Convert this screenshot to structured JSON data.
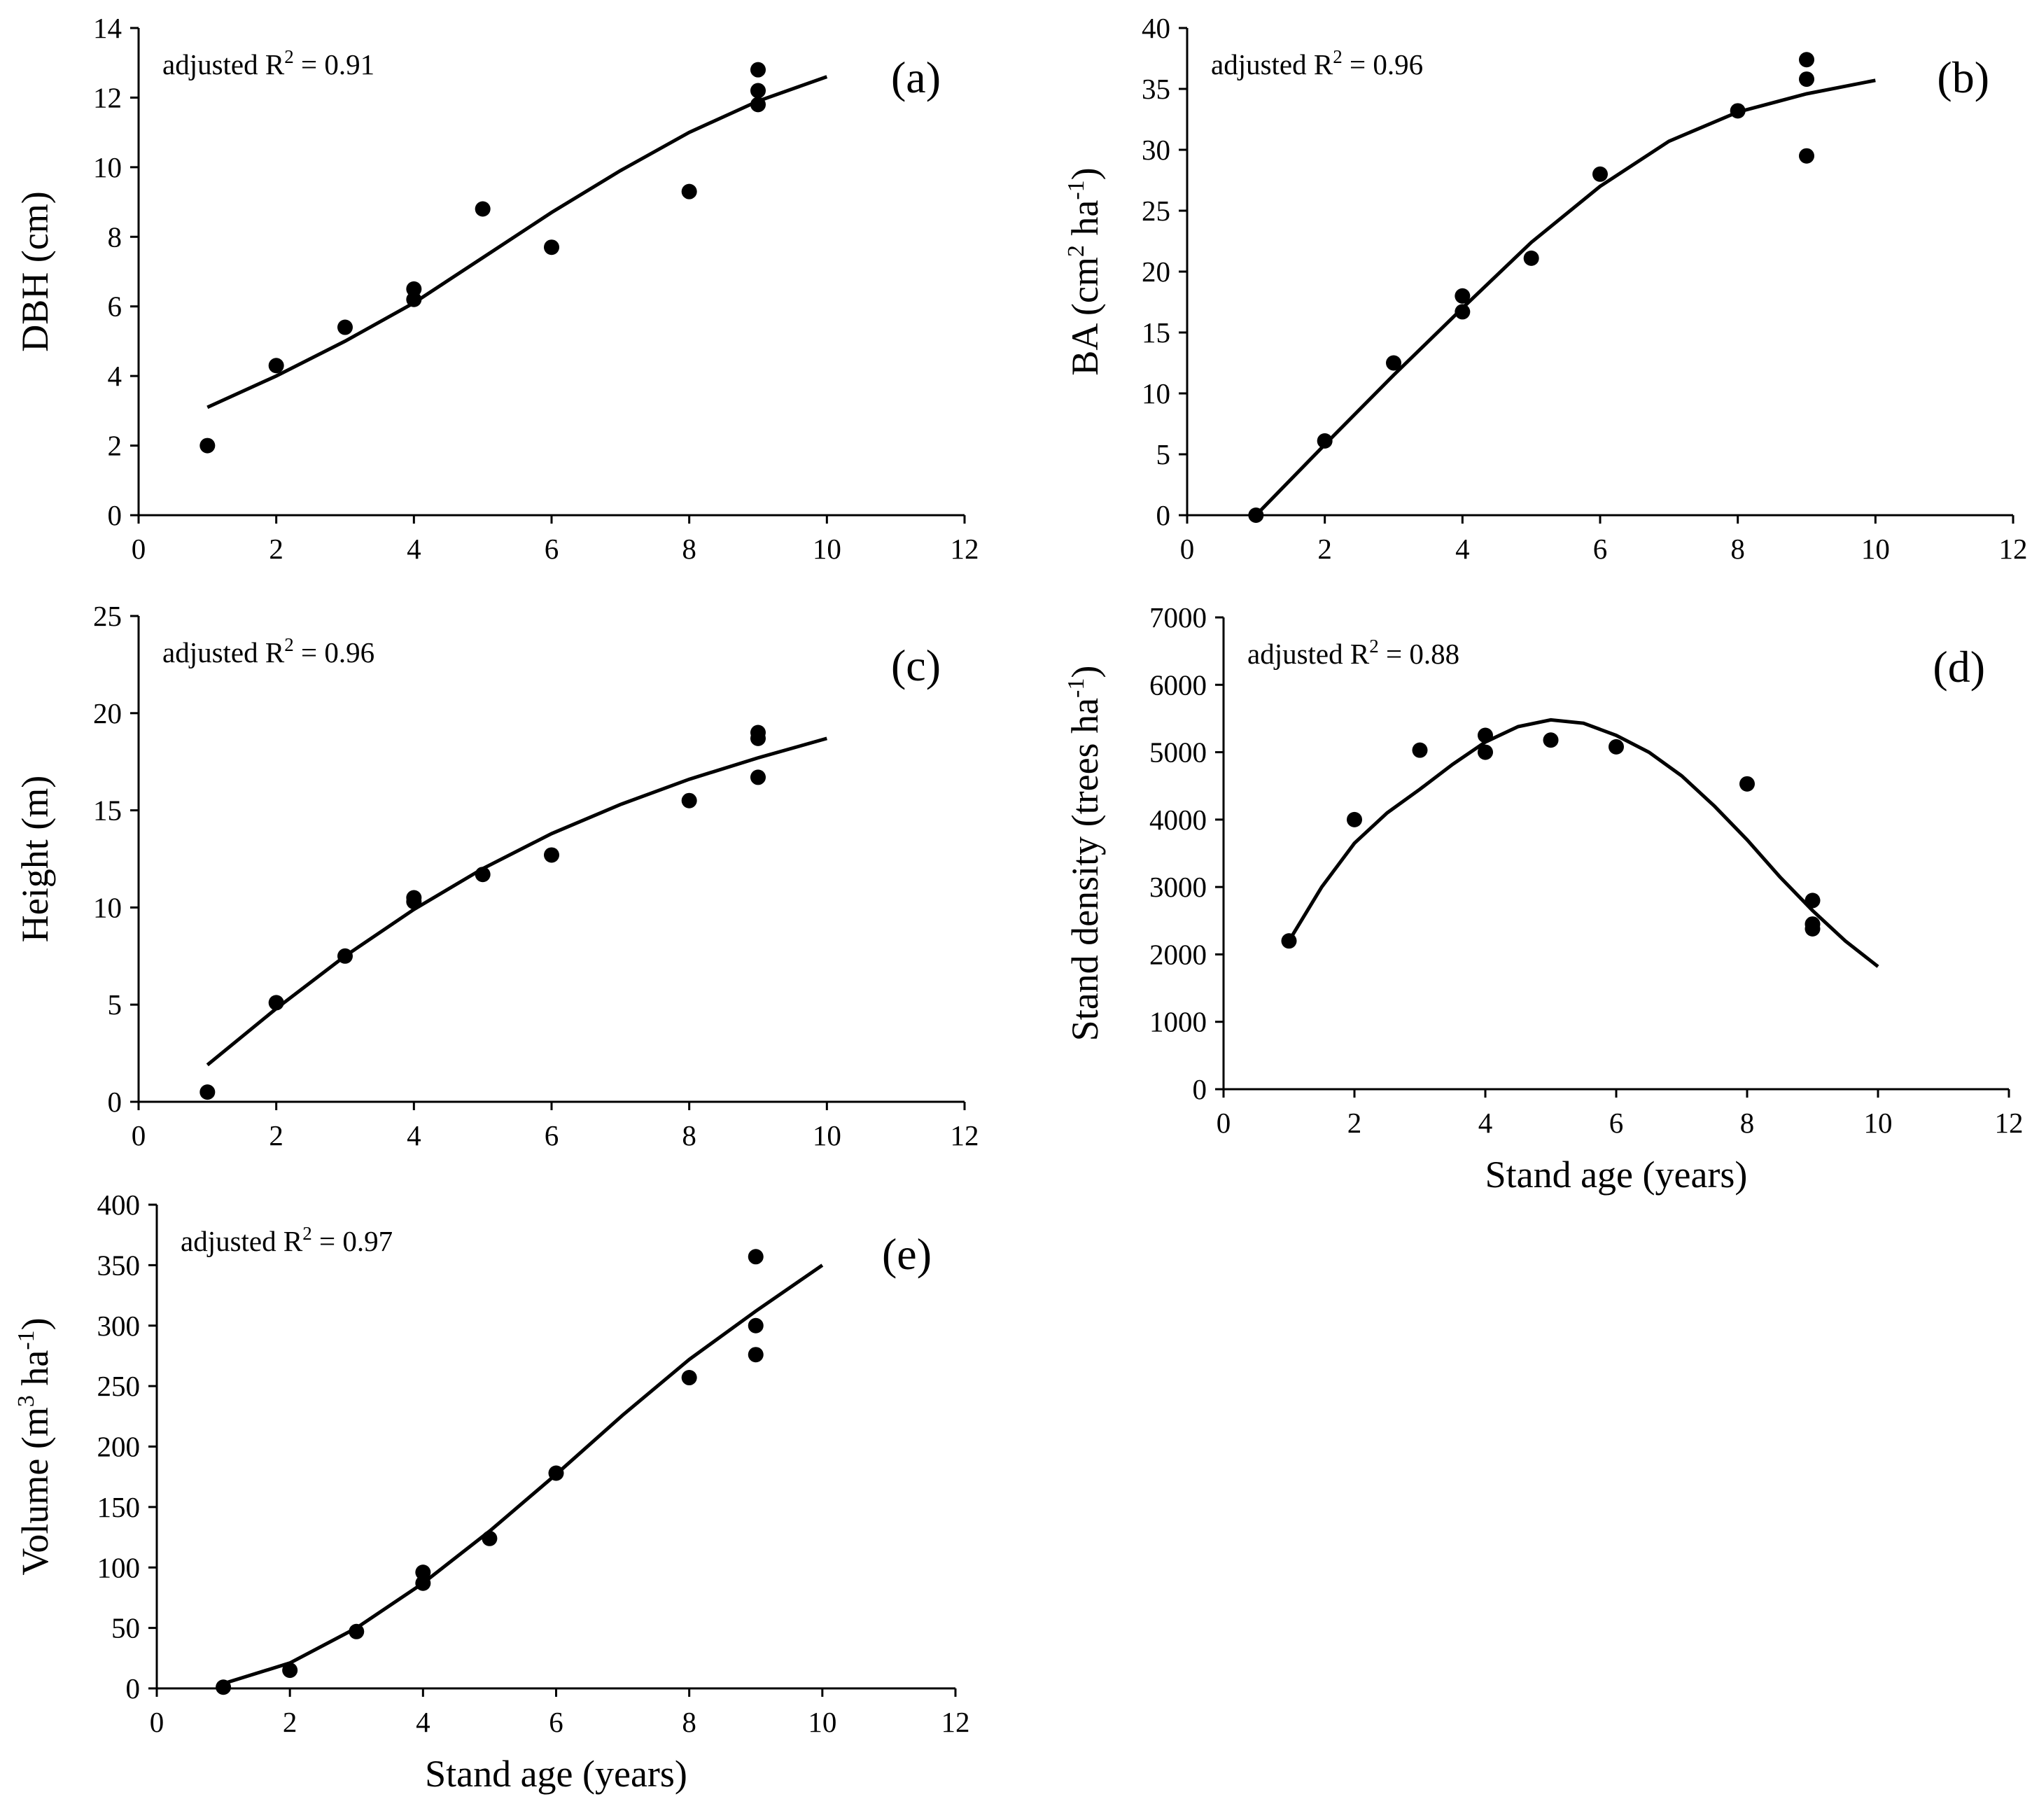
{
  "figure": {
    "x_axis_title": "Stand age (years)"
  },
  "chart_data": [
    {
      "type": "scatter",
      "panel": "(a)",
      "ylabel": {
        "main": "DBH (cm)"
      },
      "xlabel": "",
      "annotation": {
        "prefix": "adjusted R",
        "sup": "2",
        "suffix": " = 0.91"
      },
      "xlim": [
        0,
        12
      ],
      "ylim": [
        0,
        14
      ],
      "xticks": [
        0,
        2,
        4,
        6,
        8,
        10,
        12
      ],
      "yticks": [
        0,
        2,
        4,
        6,
        8,
        10,
        12,
        14
      ],
      "points": [
        [
          1,
          2.0
        ],
        [
          2,
          4.3
        ],
        [
          3,
          5.4
        ],
        [
          4,
          6.2
        ],
        [
          4,
          6.5
        ],
        [
          5,
          8.8
        ],
        [
          6,
          7.7
        ],
        [
          8,
          9.3
        ],
        [
          9,
          11.8
        ],
        [
          9,
          12.2
        ],
        [
          9,
          12.8
        ]
      ],
      "fit": {
        "x": [
          1,
          2,
          3,
          4,
          5,
          6,
          7,
          8,
          9,
          10
        ],
        "y": [
          3.1,
          4.0,
          5.0,
          6.1,
          7.4,
          8.7,
          9.9,
          11.0,
          11.9,
          12.6
        ]
      }
    },
    {
      "type": "scatter",
      "panel": "(b)",
      "ylabel": {
        "main": "BA (cm",
        "sup1": "2",
        "mid": " ha",
        "sup2": "-1",
        "end": ")"
      },
      "xlabel": "",
      "annotation": {
        "prefix": "adjusted R",
        "sup": "2",
        "suffix": " = 0.96"
      },
      "xlim": [
        0,
        12
      ],
      "ylim": [
        0,
        40
      ],
      "xticks": [
        0,
        2,
        4,
        6,
        8,
        10,
        12
      ],
      "yticks": [
        0,
        5,
        10,
        15,
        20,
        25,
        30,
        35,
        40
      ],
      "points": [
        [
          1,
          0.0
        ],
        [
          2,
          6.1
        ],
        [
          3,
          12.5
        ],
        [
          4,
          16.7
        ],
        [
          4,
          18.0
        ],
        [
          5,
          21.1
        ],
        [
          6,
          28.0
        ],
        [
          8,
          33.2
        ],
        [
          9,
          29.5
        ],
        [
          9,
          35.8
        ],
        [
          9,
          37.4
        ]
      ],
      "fit": {
        "x": [
          1,
          2,
          3,
          4,
          5,
          6,
          7,
          8,
          9,
          10
        ],
        "y": [
          0.0,
          5.8,
          11.5,
          17.0,
          22.4,
          27.0,
          30.7,
          33.1,
          34.6,
          35.7
        ]
      }
    },
    {
      "type": "scatter",
      "panel": "(c)",
      "ylabel": {
        "main": "Height (m)"
      },
      "xlabel": "",
      "annotation": {
        "prefix": "adjusted R",
        "sup": "2",
        "suffix": " = 0.96"
      },
      "xlim": [
        0,
        12
      ],
      "ylim": [
        0,
        25
      ],
      "xticks": [
        0,
        2,
        4,
        6,
        8,
        10,
        12
      ],
      "yticks": [
        0,
        5,
        10,
        15,
        20,
        25
      ],
      "points": [
        [
          1,
          0.5
        ],
        [
          2,
          5.1
        ],
        [
          3,
          7.5
        ],
        [
          4,
          10.3
        ],
        [
          4,
          10.5
        ],
        [
          5,
          11.7
        ],
        [
          6,
          12.7
        ],
        [
          8,
          15.5
        ],
        [
          9,
          16.7
        ],
        [
          9,
          18.7
        ],
        [
          9,
          19.0
        ]
      ],
      "fit": {
        "x": [
          1,
          2,
          3,
          4,
          5,
          6,
          7,
          8,
          9,
          10
        ],
        "y": [
          1.9,
          4.8,
          7.5,
          9.9,
          12.0,
          13.8,
          15.3,
          16.6,
          17.7,
          18.7
        ]
      }
    },
    {
      "type": "scatter",
      "panel": "(d)",
      "ylabel": {
        "main": "Stand density (trees ha",
        "sup1": "-1",
        "end": ")"
      },
      "xlabel": "Stand age (years)",
      "annotation": {
        "prefix": "adjusted R",
        "sup": "2",
        "suffix": " = 0.88"
      },
      "xlim": [
        0,
        12
      ],
      "ylim": [
        0,
        7000
      ],
      "xticks": [
        0,
        2,
        4,
        6,
        8,
        10,
        12
      ],
      "yticks": [
        0,
        1000,
        2000,
        3000,
        4000,
        5000,
        6000,
        7000
      ],
      "points": [
        [
          1,
          2200
        ],
        [
          2,
          4000
        ],
        [
          3,
          5030
        ],
        [
          4,
          5000
        ],
        [
          4,
          5250
        ],
        [
          5,
          5180
        ],
        [
          6,
          5080
        ],
        [
          8,
          4530
        ],
        [
          9,
          2380
        ],
        [
          9,
          2450
        ],
        [
          9,
          2800
        ]
      ],
      "fit": {
        "x": [
          1,
          1.5,
          2,
          2.5,
          3,
          3.5,
          4,
          4.5,
          5,
          5.5,
          6,
          6.5,
          7,
          7.5,
          8,
          8.5,
          9,
          9.5,
          10
        ],
        "y": [
          2200,
          3000,
          3650,
          4100,
          4450,
          4820,
          5150,
          5380,
          5480,
          5430,
          5250,
          5000,
          4650,
          4200,
          3700,
          3150,
          2650,
          2200,
          1820
        ]
      }
    },
    {
      "type": "scatter",
      "panel": "(e)",
      "ylabel": {
        "main": "Volume (m",
        "sup1": "3",
        "mid": " ha",
        "sup2": "-1",
        "end": ")"
      },
      "xlabel": "Stand age (years)",
      "annotation": {
        "prefix": "adjusted R",
        "sup": "2",
        "suffix": " = 0.97"
      },
      "xlim": [
        0,
        12
      ],
      "ylim": [
        0,
        400
      ],
      "xticks": [
        0,
        2,
        4,
        6,
        8,
        10,
        12
      ],
      "yticks": [
        0,
        50,
        100,
        150,
        200,
        250,
        300,
        350,
        400
      ],
      "points": [
        [
          1,
          1
        ],
        [
          2,
          15
        ],
        [
          3,
          47
        ],
        [
          4,
          87
        ],
        [
          4,
          96
        ],
        [
          5,
          124
        ],
        [
          6,
          178
        ],
        [
          8,
          257
        ],
        [
          9,
          276
        ],
        [
          9,
          300
        ],
        [
          9,
          357
        ]
      ],
      "fit": {
        "x": [
          1,
          2,
          3,
          4,
          5,
          6,
          7,
          8,
          9,
          10
        ],
        "y": [
          4,
          21,
          50,
          87,
          130,
          177,
          226,
          272,
          312,
          350
        ]
      }
    }
  ]
}
